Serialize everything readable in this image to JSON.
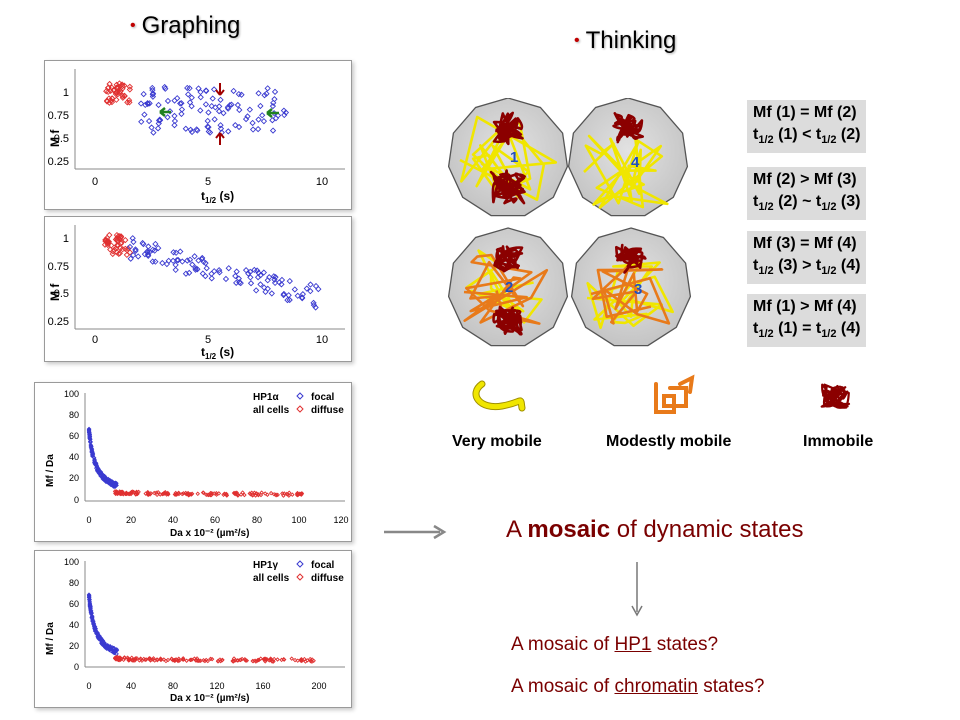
{
  "headings": {
    "graphing": "Graphing",
    "thinking": "Thinking"
  },
  "colors": {
    "bullet": "#c00000",
    "red_series": "#e03030",
    "blue_series": "#3a3ad0",
    "chromatin_dark": "#8b0000",
    "very_mobile": "#f0e600",
    "modestly_mobile": "#e87a1a",
    "text_dark_red": "#7a0000",
    "arrow_green": "#208020",
    "arrow_red": "#a00000"
  },
  "plot1": {
    "ylabel": "M f",
    "xlabel_main": "t",
    "xlabel_sub": "1/2",
    "xlabel_unit": " (s)",
    "yticks": [
      "1",
      "0.75",
      "0.5",
      "0.25"
    ],
    "xticks": [
      "0",
      "5",
      "10"
    ]
  },
  "plot2": {
    "ylabel": "M f",
    "xlabel_main": "t",
    "xlabel_sub": "1/2",
    "xlabel_unit": " (s)",
    "yticks": [
      "1",
      "0.75",
      "0.5",
      "0.25"
    ],
    "xticks": [
      "0",
      "5",
      "10"
    ]
  },
  "plot3": {
    "ylabel": "Mf / Da",
    "xlabel": "Da x 10⁻² (µm²/s)",
    "legend_title_1": "HP1α",
    "legend_title_2": "all cells",
    "legend_focal": "focal",
    "legend_diffuse": "diffuse",
    "yticks": [
      "100",
      "80",
      "60",
      "40",
      "20",
      "0"
    ],
    "xticks": [
      "0",
      "20",
      "40",
      "60",
      "80",
      "100",
      "120"
    ]
  },
  "plot4": {
    "ylabel": "Mf / Da",
    "xlabel": "Da x 10⁻² (µm²/s)",
    "legend_title_1": "HP1γ",
    "legend_title_2": "all cells",
    "legend_focal": "focal",
    "legend_diffuse": "diffuse",
    "yticks": [
      "100",
      "80",
      "60",
      "40",
      "20",
      "0"
    ],
    "xticks": [
      "0",
      "40",
      "80",
      "120",
      "160",
      "200"
    ]
  },
  "nuclei": [
    {
      "label": "1"
    },
    {
      "label": "4"
    },
    {
      "label": "2"
    },
    {
      "label": "3"
    }
  ],
  "equations": [
    {
      "line1": {
        "a": "Mf (1) = Mf (2)"
      },
      "line2": {
        "t": "t",
        "sub": "1/2",
        "rest1": " (1) < t",
        "sub2": "1/2",
        "rest2": " (2)"
      }
    },
    {
      "line1": {
        "a": "Mf (2) > Mf (3)"
      },
      "line2": {
        "t": "t",
        "sub": "1/2",
        "rest1": " (2) ~ t",
        "sub2": "1/2",
        "rest2": " (3)"
      }
    },
    {
      "line1": {
        "a": "Mf (3) = Mf (4)"
      },
      "line2": {
        "t": "t",
        "sub": "1/2",
        "rest1": " (3) > t",
        "sub2": "1/2",
        "rest2": " (4)"
      }
    },
    {
      "line1": {
        "a": "Mf (1) > Mf (4)"
      },
      "line2": {
        "t": "t",
        "sub": "1/2",
        "rest1": " (1) = t",
        "sub2": "1/2",
        "rest2": " (4)"
      }
    }
  ],
  "legend": {
    "very_mobile": "Very mobile",
    "modestly_mobile": "Modestly mobile",
    "immobile": "Immobile"
  },
  "mosaic": {
    "pre": "A ",
    "bold": "mosaic",
    "post": " of dynamic states"
  },
  "questions": [
    {
      "pre": "A mosaic of ",
      "u": "HP1",
      "post": " states?"
    },
    {
      "pre": "A  mosaic of ",
      "u": "chromatin",
      "post": " states?"
    }
  ]
}
